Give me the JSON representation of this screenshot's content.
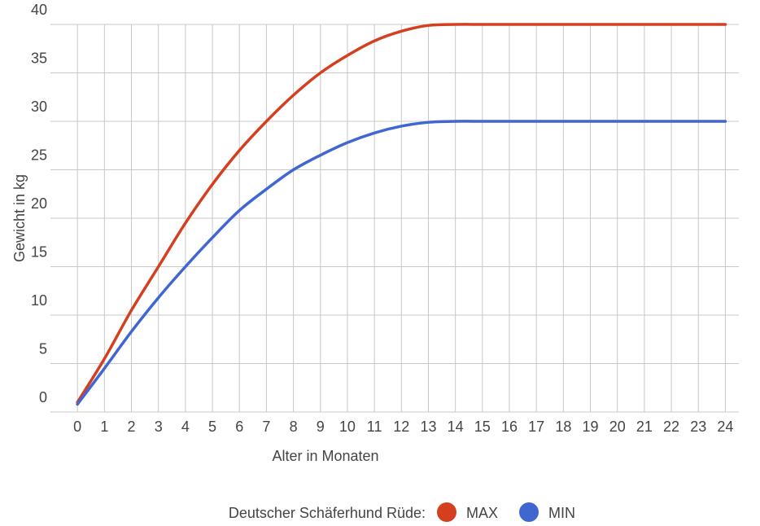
{
  "chart_data": {
    "type": "line",
    "x_label": "Alter in Monaten",
    "y_label": "Gewicht in kg",
    "legend_title": "Deutscher Schäferhund Rüde:",
    "x": [
      0,
      1,
      2,
      3,
      4,
      5,
      6,
      7,
      8,
      9,
      10,
      11,
      12,
      13,
      14,
      15,
      16,
      17,
      18,
      19,
      20,
      21,
      22,
      23,
      24
    ],
    "series": [
      {
        "name": "MAX",
        "color": "#d43f1f",
        "values": [
          1,
          5.5,
          10.5,
          15,
          19.5,
          23.5,
          27,
          30,
          32.7,
          35,
          36.8,
          38.3,
          39.3,
          39.9,
          40,
          40,
          40,
          40,
          40,
          40,
          40,
          40,
          40,
          40,
          40
        ]
      },
      {
        "name": "MIN",
        "color": "#3f67cf",
        "values": [
          0.8,
          4.5,
          8.3,
          11.8,
          15,
          18,
          20.8,
          23,
          25,
          26.5,
          27.8,
          28.8,
          29.5,
          29.9,
          30,
          30,
          30,
          30,
          30,
          30,
          30,
          30,
          30,
          30,
          30
        ]
      }
    ],
    "xlim": [
      -1,
      24.5
    ],
    "ylim": [
      0,
      40
    ],
    "xticks": [
      0,
      1,
      2,
      3,
      4,
      5,
      6,
      7,
      8,
      9,
      10,
      11,
      12,
      13,
      14,
      15,
      16,
      17,
      18,
      19,
      20,
      21,
      22,
      23,
      24
    ],
    "yticks": [
      0,
      5,
      10,
      15,
      20,
      25,
      30,
      35,
      40
    ],
    "grid": true,
    "legend": "bottom"
  }
}
